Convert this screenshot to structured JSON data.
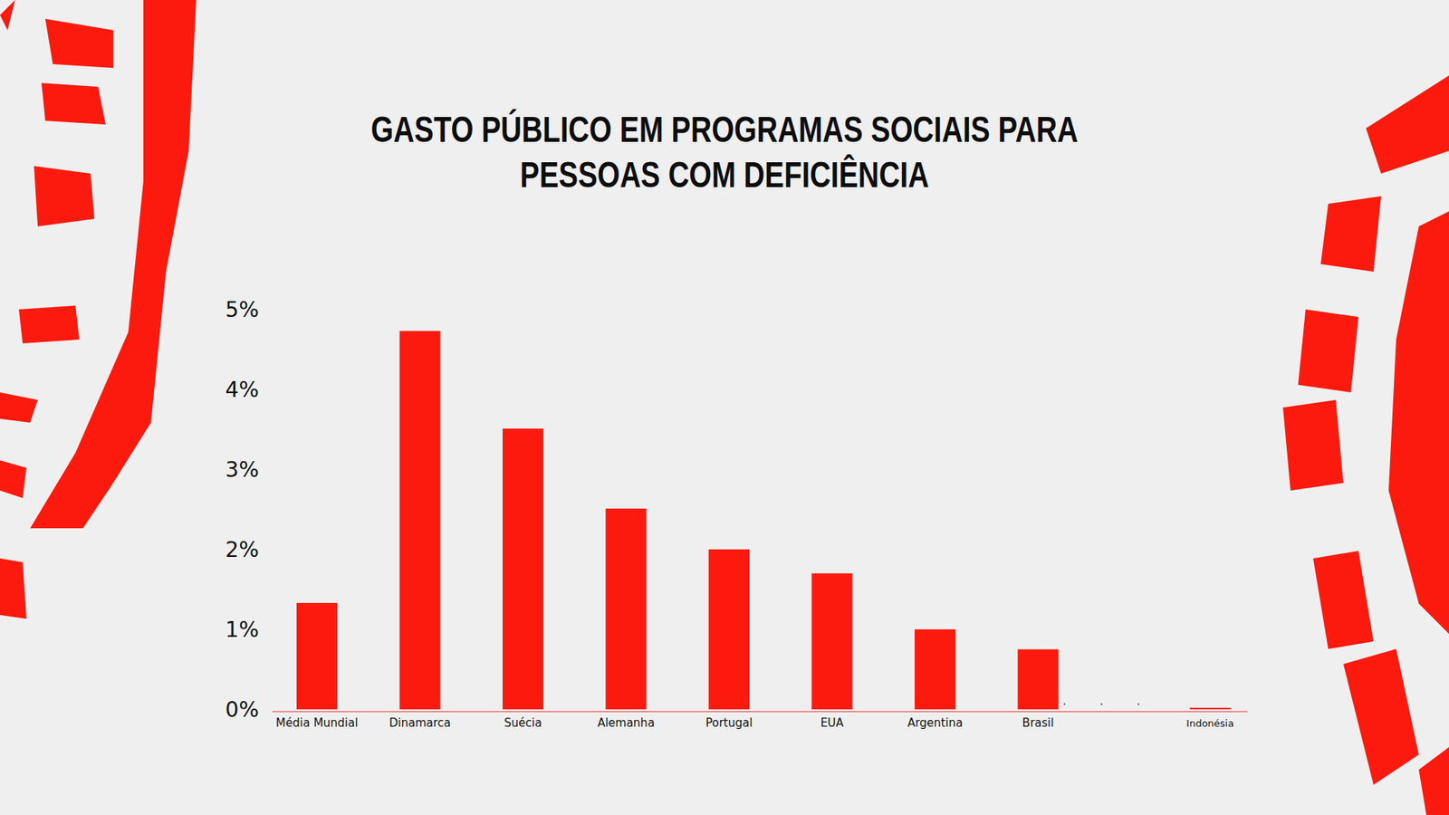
{
  "chart_data": {
    "type": "bar",
    "title": [
      "GASTO PÚBLICO EM PROGRAMAS SOCIAIS PARA",
      "PESSOAS COM DEFICIÊNCIA"
    ],
    "categories": [
      "Média Mundial",
      "Dinamarca",
      "Suécia",
      "Alemanha",
      "Portugal",
      "EUA",
      "Argentina",
      "Brasil",
      "Indonésia"
    ],
    "values": [
      1.33,
      4.73,
      3.51,
      2.51,
      2.0,
      1.7,
      1.0,
      0.75,
      0.02
    ],
    "color": "#fc1a0e",
    "ylim": [
      0,
      5
    ],
    "yticks": [
      {
        "value": 0,
        "label": "0%"
      },
      {
        "value": 1,
        "label": "1%"
      },
      {
        "value": 2,
        "label": "2%"
      },
      {
        "value": 3,
        "label": "3%"
      },
      {
        "value": 4,
        "label": "4%"
      },
      {
        "value": 5,
        "label": "5%"
      }
    ],
    "annotations": [
      ". . ."
    ],
    "grid": false,
    "data_labels": false
  }
}
